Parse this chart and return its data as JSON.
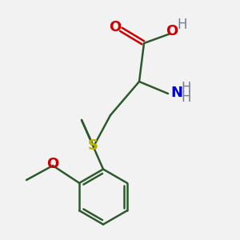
{
  "background_color": "#f2f2f2",
  "bond_color": "#2d5a2d",
  "O_color": "#cc0000",
  "H_color": "#708090",
  "N_color": "#0000cc",
  "S_color": "#b8b000",
  "line_width": 1.8,
  "figsize": [
    3.0,
    3.0
  ],
  "dpi": 100,
  "xlim": [
    0,
    10
  ],
  "ylim": [
    0,
    10
  ]
}
